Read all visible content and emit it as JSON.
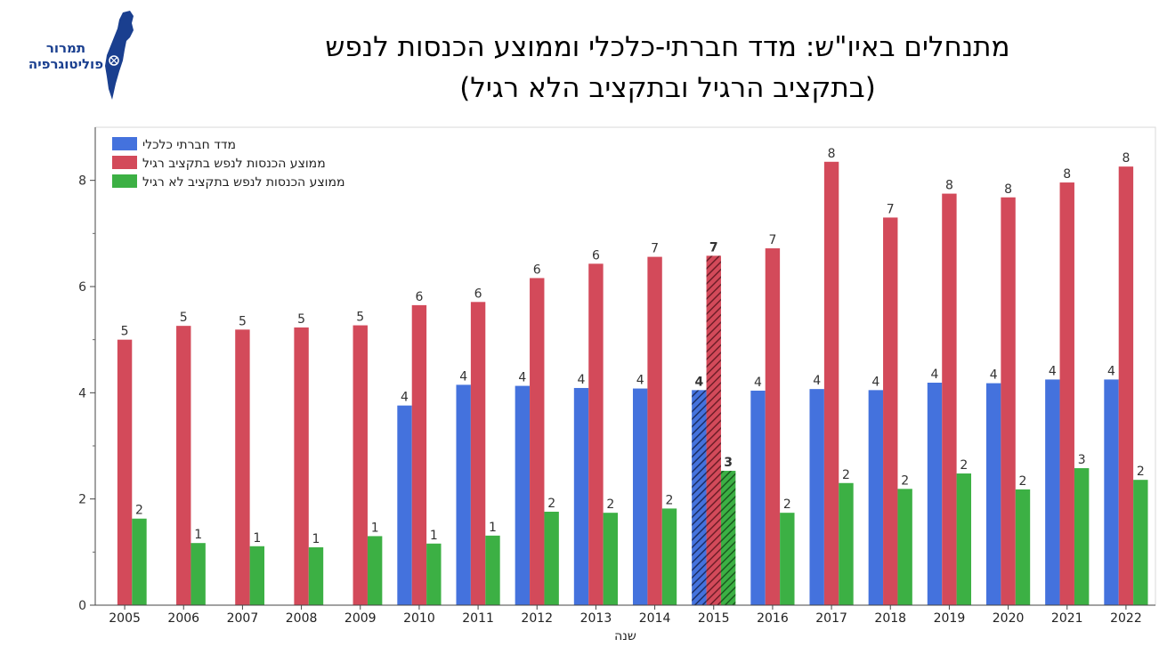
{
  "logo": {
    "line1": "תמרור",
    "line2": "פוליטוגרפיה",
    "icon": "israel-map-icon",
    "color": "#1a3f8f"
  },
  "title": {
    "line1": "מתנחלים באיו\"ש: מדד חברתי-כלכלי וממוצע הכנסות לנפש",
    "line2": "(בתקציב הרגיל ובתקציב הלא רגיל)"
  },
  "chart_data": {
    "type": "bar",
    "xlabel": "שנה",
    "ylabel": "",
    "ylim": [
      0,
      9
    ],
    "yticks": [
      0,
      2,
      4,
      6,
      8
    ],
    "grid": false,
    "legend_position": "top-left",
    "highlight_category": "2015",
    "categories": [
      "2005",
      "2006",
      "2007",
      "2008",
      "2009",
      "2010",
      "2011",
      "2012",
      "2013",
      "2014",
      "2015",
      "2016",
      "2017",
      "2018",
      "2019",
      "2020",
      "2021",
      "2022"
    ],
    "series": [
      {
        "name": "מדד חברתי כלכלי",
        "color": "#4472dd",
        "values": [
          null,
          null,
          null,
          null,
          null,
          3.76,
          4.15,
          4.13,
          4.09,
          4.08,
          4.05,
          4.04,
          4.07,
          4.05,
          4.19,
          4.18,
          4.25,
          4.25
        ],
        "labels": [
          "",
          "",
          "",
          "",
          "",
          "4",
          "4",
          "4",
          "4",
          "4",
          "4",
          "4",
          "4",
          "4",
          "4",
          "4",
          "4",
          "4"
        ]
      },
      {
        "name": "ממוצע הכנסות לנפש בתקציב רגיל",
        "color": "#d34a5a",
        "values": [
          5.0,
          5.26,
          5.19,
          5.23,
          5.27,
          5.65,
          5.71,
          6.16,
          6.43,
          6.56,
          6.58,
          6.72,
          8.35,
          7.3,
          7.75,
          7.68,
          7.96,
          8.26
        ],
        "labels": [
          "5",
          "5",
          "5",
          "5",
          "5",
          "6",
          "6",
          "6",
          "6",
          "7",
          "7",
          "7",
          "8",
          "7",
          "8",
          "8",
          "8",
          "8"
        ]
      },
      {
        "name": "ממוצע הכנסות לנפש בתקציב לא רגיל",
        "color": "#3cb044",
        "values": [
          1.63,
          1.17,
          1.11,
          1.09,
          1.3,
          1.16,
          1.31,
          1.76,
          1.74,
          1.82,
          2.53,
          1.74,
          2.3,
          2.19,
          2.48,
          2.18,
          2.58,
          2.36
        ],
        "labels": [
          "2",
          "1",
          "1",
          "1",
          "1",
          "1",
          "1",
          "2",
          "2",
          "2",
          "3",
          "2",
          "2",
          "2",
          "2",
          "2",
          "3",
          "2"
        ]
      }
    ]
  }
}
